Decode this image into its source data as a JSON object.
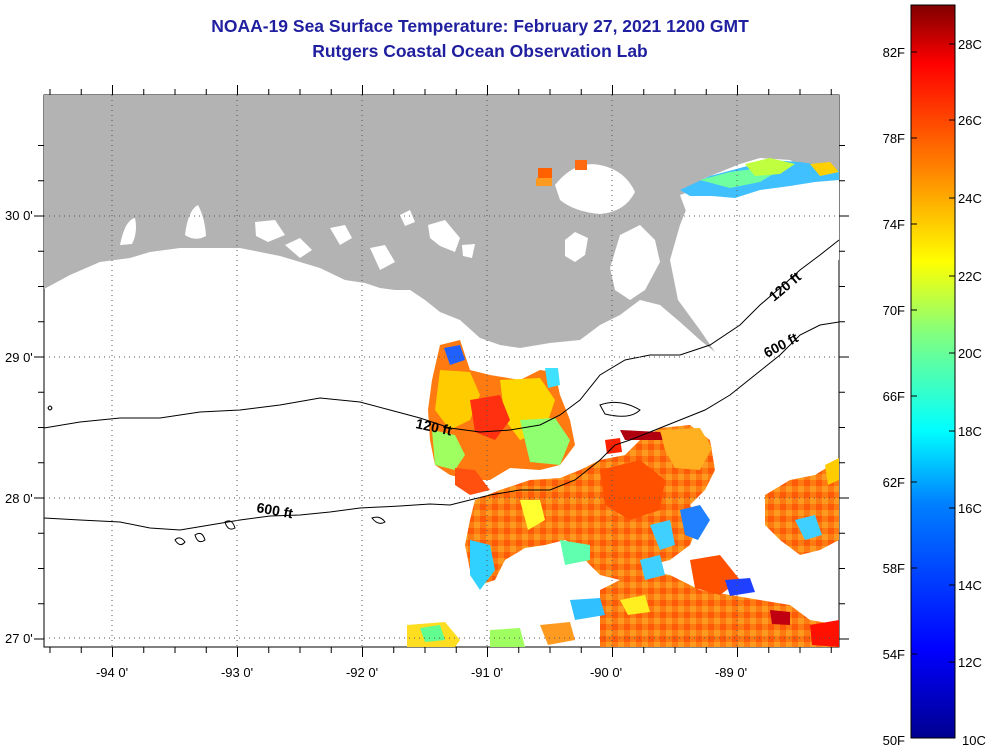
{
  "title": "NOAA-19 Sea Surface Temperature:  February 27, 2021 1200 GMT",
  "subtitle": "Rutgers Coastal Ocean Observation Lab",
  "map": {
    "lon_range": [
      -94.5,
      -88.2
    ],
    "lat_range": [
      26.93,
      30.85
    ],
    "lat_labels": [
      "30 0'",
      "29 0'",
      "28 0'",
      "27 0'"
    ],
    "lon_labels": [
      "-94 0'",
      "-93 0'",
      "-92 0'",
      "-91 0'",
      "-90 0'",
      "-89 0'"
    ],
    "contour_labels": [
      {
        "text": "120 ft",
        "id": "west"
      },
      {
        "text": "600 ft",
        "id": "west"
      },
      {
        "text": "120 ft",
        "id": "east"
      },
      {
        "text": "600 ft",
        "id": "east"
      }
    ],
    "land_color": "#b3b3b3"
  },
  "colorbar": {
    "f_labels": [
      "82F",
      "78F",
      "74F",
      "70F",
      "66F",
      "62F",
      "58F",
      "54F",
      "50F"
    ],
    "c_labels": [
      "28C",
      "26C",
      "24C",
      "22C",
      "20C",
      "18C",
      "16C",
      "14C",
      "12C",
      "10C"
    ],
    "colors": [
      "#00008f",
      "#0000ff",
      "#0080ff",
      "#00ffff",
      "#80ff80",
      "#ffff00",
      "#ff8000",
      "#ff0000",
      "#800000"
    ]
  }
}
